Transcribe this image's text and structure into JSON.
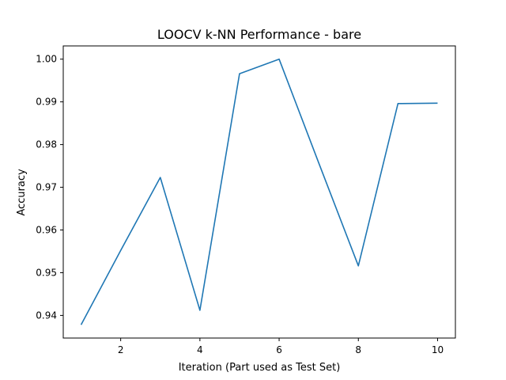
{
  "chart_data": {
    "type": "line",
    "title": "LOOCV k-NN Performance - bare",
    "xlabel": "Iteration (Part used as Test Set)",
    "ylabel": "Accuracy",
    "xlim": [
      0.55,
      10.45
    ],
    "ylim": [
      0.9347,
      1.0031
    ],
    "x_ticks": [
      2,
      4,
      6,
      8,
      10
    ],
    "y_ticks": [
      0.94,
      0.95,
      0.96,
      0.97,
      0.98,
      0.99,
      1.0
    ],
    "x_tick_labels": [
      "2",
      "4",
      "6",
      "8",
      "10"
    ],
    "y_tick_labels": [
      "0.94",
      "0.95",
      "0.96",
      "0.97",
      "0.98",
      "0.99",
      "1.00"
    ],
    "grid": false,
    "line_color": "#1f77b4",
    "series": [
      {
        "x": [
          1,
          2,
          3,
          4,
          5,
          6,
          7,
          8,
          9,
          10
        ],
        "values": [
          0.9378,
          0.9552,
          0.9723,
          0.9412,
          0.9966,
          1.0,
          0.9757,
          0.9516,
          0.9896,
          0.9897
        ]
      }
    ]
  }
}
